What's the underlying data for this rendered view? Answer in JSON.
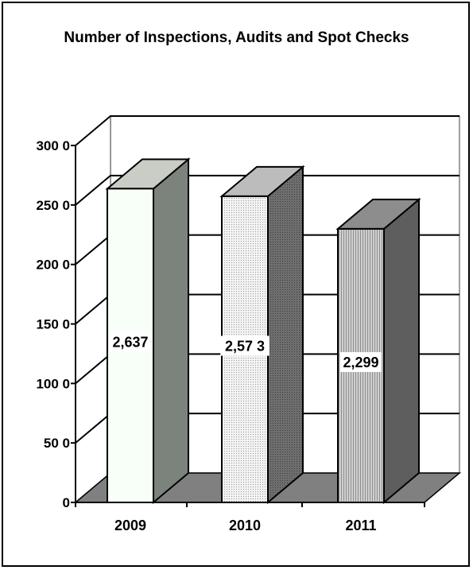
{
  "chart_data": {
    "type": "bar",
    "title": "Number of Inspections, Audits and Spot Checks",
    "categories": [
      "2009",
      "2010",
      "2011"
    ],
    "values": [
      2637,
      2573,
      2299
    ],
    "data_labels": [
      "2,637",
      "2,57 3",
      "2,299"
    ],
    "y_tick_values": [
      0,
      500,
      1000,
      1500,
      2000,
      2500,
      3000
    ],
    "y_tick_labels": [
      "0",
      "50 0",
      "100 0",
      "150 0",
      "200 0",
      "250 0",
      "300 0"
    ],
    "ylim": [
      0,
      3000
    ],
    "grid": true,
    "style": "3d-column",
    "colors": {
      "floor": "#808080",
      "bar_front": [
        "#f8fff8",
        "#eeeeee",
        "#bdbdbd"
      ],
      "bar_side": [
        "#7c837c",
        "#6e6e6e",
        "#5e5e5e"
      ],
      "bar_top": [
        "#c9cdc5",
        "#bcbcbc",
        "#8d8d8d"
      ]
    }
  }
}
